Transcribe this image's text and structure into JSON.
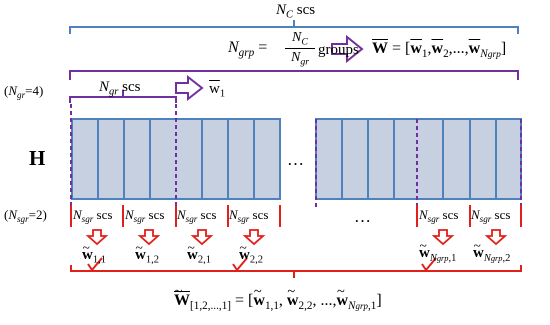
{
  "top": {
    "nc_symbol": "N",
    "nc_sub": "C",
    "nc_unit": "scs"
  },
  "ngrp": {
    "lhs": "N",
    "lhs_sub": "grp",
    "num": "N",
    "num_sub": "C",
    "den": "N",
    "den_sub": "gr",
    "unit": "groups",
    "result_symbol": "W",
    "result_items": [
      "w",
      "1",
      "w",
      "2",
      "N",
      "grp"
    ]
  },
  "ngr": {
    "label": "(N",
    "label_sub": "gr",
    "label_val": "=4)",
    "bracket_text": "N",
    "bracket_sub": "gr",
    "bracket_unit": "scs",
    "vec": "w",
    "vec_sub": "1"
  },
  "matrix_label": "H",
  "dots": "…",
  "dots_bottom": "…",
  "nsgr": {
    "label": "(N",
    "label_sub": "sgr",
    "label_val": "=2)",
    "group_text": "N",
    "group_sub": "sgr",
    "group_unit": "scs"
  },
  "sub_vectors": [
    {
      "sym": "w",
      "sub": "1,1"
    },
    {
      "sym": "w",
      "sub": "1,2"
    },
    {
      "sym": "w",
      "sub": "2,1"
    },
    {
      "sym": "w",
      "sub": "2,2"
    },
    {
      "sym": "w",
      "sub1": "N",
      "sub2": "grp",
      "sub3": ",1"
    },
    {
      "sym": "w",
      "sub1": "N",
      "sub2": "grp",
      "sub3": ",2"
    }
  ],
  "final": {
    "lhs": "W",
    "lhs_sub": "[1,2,...,1]",
    "eq": "=",
    "items": [
      "w",
      "1,1",
      "w",
      "2,2",
      "...,",
      "w",
      "N",
      "grp",
      ",1"
    ]
  },
  "colors": {
    "blue": "#4f81bd",
    "purple": "#7030a0",
    "red": "#e0201b",
    "fill": "#c6d0e0"
  }
}
